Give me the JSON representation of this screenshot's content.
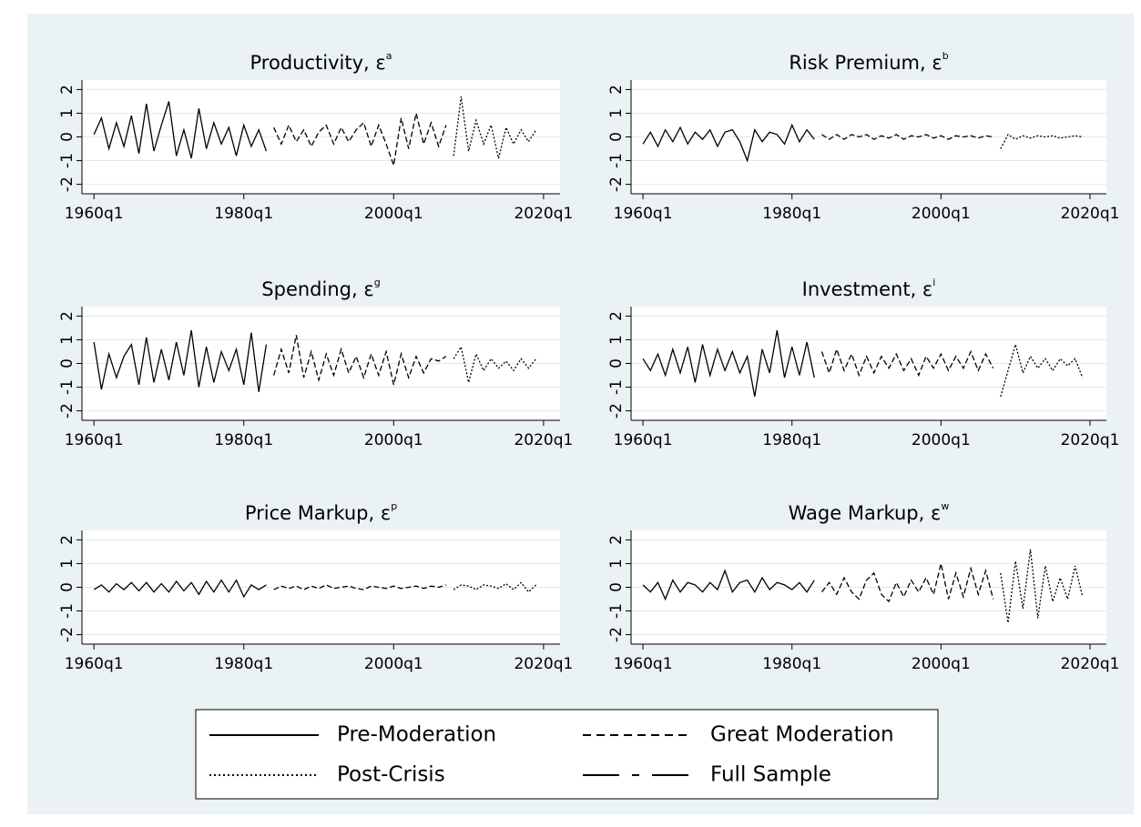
{
  "chart_data": [
    {
      "type": "line",
      "title": "Productivity, ε",
      "title_superscript": "a",
      "xlim": [
        1958.4,
        2022.2
      ],
      "ylim": [
        -2.4,
        2.4
      ],
      "xticks": [
        {
          "value": 1960,
          "label": "1960q1"
        },
        {
          "value": 1980,
          "label": "1980q1"
        },
        {
          "value": 2000,
          "label": "2000q1"
        },
        {
          "value": 2020,
          "label": "2020q1"
        }
      ],
      "yticks": [
        -2,
        -1,
        0,
        1,
        2
      ],
      "grid": true,
      "series": [
        {
          "color": "#000000",
          "dash": "none",
          "x": [
            1960,
            1961,
            1962,
            1963,
            1964,
            1965,
            1966,
            1967,
            1968,
            1969,
            1970,
            1971,
            1972,
            1973,
            1974,
            1975,
            1976,
            1977,
            1978,
            1979,
            1980,
            1981,
            1982,
            1983
          ],
          "values": [
            0.1,
            0.8,
            -0.5,
            0.6,
            -0.4,
            0.9,
            -0.7,
            1.4,
            -0.6,
            0.5,
            1.5,
            -0.8,
            0.3,
            -0.9,
            1.2,
            -0.5,
            0.6,
            -0.3,
            0.4,
            -0.8,
            0.5,
            -0.4,
            0.3,
            -0.6
          ]
        },
        {
          "color": "#000000",
          "dash": "6,3",
          "x": [
            1984,
            1985,
            1986,
            1987,
            1988,
            1989,
            1990,
            1991,
            1992,
            1993,
            1994,
            1995,
            1996,
            1997,
            1998,
            1999,
            2000,
            2001,
            2002,
            2003,
            2004,
            2005,
            2006,
            2007
          ],
          "values": [
            0.4,
            -0.3,
            0.5,
            -0.2,
            0.3,
            -0.4,
            0.2,
            0.5,
            -0.3,
            0.4,
            -0.2,
            0.3,
            0.6,
            -0.4,
            0.5,
            -0.3,
            -1.2,
            0.8,
            -0.5,
            1.0,
            -0.3,
            0.6,
            -0.4,
            0.5
          ]
        },
        {
          "color": "#000000",
          "dash": "2,2",
          "x": [
            2008,
            2009,
            2010,
            2011,
            2012,
            2013,
            2014,
            2015,
            2016,
            2017,
            2018,
            2019
          ],
          "values": [
            -0.8,
            1.7,
            -0.6,
            0.7,
            -0.3,
            0.5,
            -0.9,
            0.4,
            -0.3,
            0.3,
            -0.2,
            0.3
          ]
        }
      ]
    },
    {
      "type": "line",
      "title": "Risk Premium, ε",
      "title_superscript": "b",
      "xlim": [
        1958.4,
        2022.2
      ],
      "ylim": [
        -2.4,
        2.4
      ],
      "xticks": [
        {
          "value": 1960,
          "label": "1960q1"
        },
        {
          "value": 1980,
          "label": "1980q1"
        },
        {
          "value": 2000,
          "label": "2000q1"
        },
        {
          "value": 2020,
          "label": "2020q1"
        }
      ],
      "yticks": [
        -2,
        -1,
        0,
        1,
        2
      ],
      "grid": true,
      "series": [
        {
          "color": "#000000",
          "dash": "none",
          "x": [
            1960,
            1961,
            1962,
            1963,
            1964,
            1965,
            1966,
            1967,
            1968,
            1969,
            1970,
            1971,
            1972,
            1973,
            1974,
            1975,
            1976,
            1977,
            1978,
            1979,
            1980,
            1981,
            1982,
            1983
          ],
          "values": [
            -0.3,
            0.2,
            -0.4,
            0.3,
            -0.2,
            0.4,
            -0.3,
            0.2,
            -0.1,
            0.3,
            -0.4,
            0.2,
            0.3,
            -0.2,
            -1.0,
            0.3,
            -0.2,
            0.2,
            0.1,
            -0.3,
            0.5,
            -0.2,
            0.3,
            -0.1
          ]
        },
        {
          "color": "#000000",
          "dash": "6,3",
          "x": [
            1984,
            1985,
            1986,
            1987,
            1988,
            1989,
            1990,
            1991,
            1992,
            1993,
            1994,
            1995,
            1996,
            1997,
            1998,
            1999,
            2000,
            2001,
            2002,
            2003,
            2004,
            2005,
            2006,
            2007
          ],
          "values": [
            0.1,
            -0.1,
            0.1,
            -0.1,
            0.1,
            0,
            0.1,
            -0.1,
            0.05,
            -0.05,
            0.1,
            -0.1,
            0.05,
            0,
            0.1,
            -0.05,
            0.05,
            -0.1,
            0.05,
            0,
            0.05,
            -0.05,
            0.05,
            0
          ]
        },
        {
          "color": "#000000",
          "dash": "2,2",
          "x": [
            2008,
            2009,
            2010,
            2011,
            2012,
            2013,
            2014,
            2015,
            2016,
            2017,
            2018,
            2019
          ],
          "values": [
            -0.5,
            0.1,
            -0.1,
            0.05,
            -0.05,
            0.05,
            0,
            0.05,
            -0.05,
            0,
            0.05,
            0
          ]
        }
      ]
    },
    {
      "type": "line",
      "title": "Spending, ε",
      "title_superscript": "g",
      "xlim": [
        1958.4,
        2022.2
      ],
      "ylim": [
        -2.4,
        2.4
      ],
      "xticks": [
        {
          "value": 1960,
          "label": "1960q1"
        },
        {
          "value": 1980,
          "label": "1980q1"
        },
        {
          "value": 2000,
          "label": "2000q1"
        },
        {
          "value": 2020,
          "label": "2020q1"
        }
      ],
      "yticks": [
        -2,
        -1,
        0,
        1,
        2
      ],
      "grid": true,
      "series": [
        {
          "color": "#000000",
          "dash": "none",
          "x": [
            1960,
            1961,
            1962,
            1963,
            1964,
            1965,
            1966,
            1967,
            1968,
            1969,
            1970,
            1971,
            1972,
            1973,
            1974,
            1975,
            1976,
            1977,
            1978,
            1979,
            1980,
            1981,
            1982,
            1983
          ],
          "values": [
            0.9,
            -1.1,
            0.4,
            -0.6,
            0.3,
            0.8,
            -0.9,
            1.1,
            -0.8,
            0.6,
            -0.7,
            0.9,
            -0.5,
            1.4,
            -1.0,
            0.7,
            -0.8,
            0.5,
            -0.3,
            0.6,
            -0.9,
            1.3,
            -1.2,
            0.8
          ]
        },
        {
          "color": "#000000",
          "dash": "6,3",
          "x": [
            1984,
            1985,
            1986,
            1987,
            1988,
            1989,
            1990,
            1991,
            1992,
            1993,
            1994,
            1995,
            1996,
            1997,
            1998,
            1999,
            2000,
            2001,
            2002,
            2003,
            2004,
            2005,
            2006,
            2007
          ],
          "values": [
            -0.5,
            0.6,
            -0.4,
            1.2,
            -0.6,
            0.5,
            -0.7,
            0.4,
            -0.5,
            0.6,
            -0.4,
            0.3,
            -0.6,
            0.4,
            -0.5,
            0.5,
            -0.9,
            0.4,
            -0.6,
            0.3,
            -0.4,
            0.2,
            0.1,
            0.3
          ]
        },
        {
          "color": "#000000",
          "dash": "2,2",
          "x": [
            2008,
            2009,
            2010,
            2011,
            2012,
            2013,
            2014,
            2015,
            2016,
            2017,
            2018,
            2019
          ],
          "values": [
            0.2,
            0.7,
            -0.8,
            0.4,
            -0.3,
            0.2,
            -0.2,
            0.1,
            -0.3,
            0.2,
            -0.2,
            0.2
          ]
        }
      ]
    },
    {
      "type": "line",
      "title": "Investment, ε",
      "title_superscript": "i",
      "xlim": [
        1958.4,
        2022.2
      ],
      "ylim": [
        -2.4,
        2.4
      ],
      "xticks": [
        {
          "value": 1960,
          "label": "1960q1"
        },
        {
          "value": 1980,
          "label": "1980q1"
        },
        {
          "value": 2000,
          "label": "2000q1"
        },
        {
          "value": 2020,
          "label": "2020q1"
        }
      ],
      "yticks": [
        -2,
        -1,
        0,
        1,
        2
      ],
      "grid": true,
      "series": [
        {
          "color": "#000000",
          "dash": "none",
          "x": [
            1960,
            1961,
            1962,
            1963,
            1964,
            1965,
            1966,
            1967,
            1968,
            1969,
            1970,
            1971,
            1972,
            1973,
            1974,
            1975,
            1976,
            1977,
            1978,
            1979,
            1980,
            1981,
            1982,
            1983
          ],
          "values": [
            0.2,
            -0.3,
            0.4,
            -0.5,
            0.6,
            -0.4,
            0.7,
            -0.8,
            0.8,
            -0.5,
            0.6,
            -0.3,
            0.5,
            -0.4,
            0.3,
            -1.4,
            0.6,
            -0.4,
            1.4,
            -0.6,
            0.7,
            -0.5,
            0.9,
            -0.6
          ]
        },
        {
          "color": "#000000",
          "dash": "6,3",
          "x": [
            1984,
            1985,
            1986,
            1987,
            1988,
            1989,
            1990,
            1991,
            1992,
            1993,
            1994,
            1995,
            1996,
            1997,
            1998,
            1999,
            2000,
            2001,
            2002,
            2003,
            2004,
            2005,
            2006,
            2007
          ],
          "values": [
            0.5,
            -0.4,
            0.6,
            -0.3,
            0.4,
            -0.5,
            0.3,
            -0.4,
            0.3,
            -0.2,
            0.4,
            -0.3,
            0.2,
            -0.5,
            0.3,
            -0.2,
            0.4,
            -0.3,
            0.3,
            -0.2,
            0.5,
            -0.3,
            0.4,
            -0.2
          ]
        },
        {
          "color": "#000000",
          "dash": "2,2",
          "x": [
            2008,
            2009,
            2010,
            2011,
            2012,
            2013,
            2014,
            2015,
            2016,
            2017,
            2018,
            2019
          ],
          "values": [
            -1.4,
            -0.3,
            0.8,
            -0.4,
            0.3,
            -0.2,
            0.2,
            -0.3,
            0.2,
            -0.1,
            0.2,
            -0.6
          ]
        }
      ]
    },
    {
      "type": "line",
      "title": "Price Markup, ε",
      "title_superscript": "p",
      "xlim": [
        1958.4,
        2022.2
      ],
      "ylim": [
        -2.4,
        2.4
      ],
      "xticks": [
        {
          "value": 1960,
          "label": "1960q1"
        },
        {
          "value": 1980,
          "label": "1980q1"
        },
        {
          "value": 2000,
          "label": "2000q1"
        },
        {
          "value": 2020,
          "label": "2020q1"
        }
      ],
      "yticks": [
        -2,
        -1,
        0,
        1,
        2
      ],
      "grid": true,
      "series": [
        {
          "color": "#000000",
          "dash": "none",
          "x": [
            1960,
            1961,
            1962,
            1963,
            1964,
            1965,
            1966,
            1967,
            1968,
            1969,
            1970,
            1971,
            1972,
            1973,
            1974,
            1975,
            1976,
            1977,
            1978,
            1979,
            1980,
            1981,
            1982,
            1983
          ],
          "values": [
            -0.1,
            0.1,
            -0.2,
            0.15,
            -0.1,
            0.2,
            -0.15,
            0.2,
            -0.2,
            0.15,
            -0.2,
            0.25,
            -0.15,
            0.2,
            -0.3,
            0.25,
            -0.2,
            0.3,
            -0.2,
            0.3,
            -0.4,
            0.1,
            -0.1,
            0.1
          ]
        },
        {
          "color": "#000000",
          "dash": "6,3",
          "x": [
            1984,
            1985,
            1986,
            1987,
            1988,
            1989,
            1990,
            1991,
            1992,
            1993,
            1994,
            1995,
            1996,
            1997,
            1998,
            1999,
            2000,
            2001,
            2002,
            2003,
            2004,
            2005,
            2006,
            2007
          ],
          "values": [
            -0.1,
            0.05,
            -0.05,
            0.05,
            -0.1,
            0.05,
            -0.05,
            0.1,
            -0.05,
            0,
            0.05,
            -0.05,
            -0.1,
            0.05,
            0,
            -0.05,
            0.05,
            -0.05,
            0,
            0.05,
            -0.05,
            0.05,
            0,
            0.1
          ]
        },
        {
          "color": "#000000",
          "dash": "2,2",
          "x": [
            2008,
            2009,
            2010,
            2011,
            2012,
            2013,
            2014,
            2015,
            2016,
            2017,
            2018,
            2019
          ],
          "values": [
            -0.1,
            0.1,
            0.05,
            -0.1,
            0.1,
            0.05,
            -0.05,
            0.15,
            -0.1,
            0.2,
            -0.2,
            0.1
          ]
        }
      ]
    },
    {
      "type": "line",
      "title": "Wage Markup, ε",
      "title_superscript": "w",
      "xlim": [
        1958.4,
        2022.2
      ],
      "ylim": [
        -2.4,
        2.4
      ],
      "xticks": [
        {
          "value": 1960,
          "label": "1960q1"
        },
        {
          "value": 1980,
          "label": "1980q1"
        },
        {
          "value": 2000,
          "label": "2000q1"
        },
        {
          "value": 2020,
          "label": "2020q1"
        }
      ],
      "yticks": [
        -2,
        -1,
        0,
        1,
        2
      ],
      "grid": true,
      "series": [
        {
          "color": "#000000",
          "dash": "none",
          "x": [
            1960,
            1961,
            1962,
            1963,
            1964,
            1965,
            1966,
            1967,
            1968,
            1969,
            1970,
            1971,
            1972,
            1973,
            1974,
            1975,
            1976,
            1977,
            1978,
            1979,
            1980,
            1981,
            1982,
            1983
          ],
          "values": [
            0.1,
            -0.2,
            0.2,
            -0.5,
            0.3,
            -0.2,
            0.2,
            0.1,
            -0.2,
            0.2,
            -0.1,
            0.7,
            -0.2,
            0.2,
            0.3,
            -0.2,
            0.4,
            -0.1,
            0.2,
            0.1,
            -0.1,
            0.2,
            -0.2,
            0.3
          ]
        },
        {
          "color": "#000000",
          "dash": "6,3",
          "x": [
            1984,
            1985,
            1986,
            1987,
            1988,
            1989,
            1990,
            1991,
            1992,
            1993,
            1994,
            1995,
            1996,
            1997,
            1998,
            1999,
            2000,
            2001,
            2002,
            2003,
            2004,
            2005,
            2006,
            2007
          ],
          "values": [
            -0.2,
            0.2,
            -0.3,
            0.4,
            -0.2,
            -0.5,
            0.3,
            0.6,
            -0.3,
            -0.6,
            0.2,
            -0.4,
            0.3,
            -0.2,
            0.4,
            -0.3,
            1.0,
            -0.5,
            0.6,
            -0.4,
            0.8,
            -0.3,
            0.7,
            -0.5
          ]
        },
        {
          "color": "#000000",
          "dash": "2,2",
          "x": [
            2008,
            2009,
            2010,
            2011,
            2012,
            2013,
            2014,
            2015,
            2016,
            2017,
            2018,
            2019
          ],
          "values": [
            0.6,
            -1.5,
            1.1,
            -0.9,
            1.6,
            -1.3,
            0.9,
            -0.6,
            0.4,
            -0.5,
            0.9,
            -0.4
          ]
        }
      ]
    }
  ],
  "legend": [
    {
      "name": "Pre-Moderation",
      "dash": "none"
    },
    {
      "name": "Great Moderation",
      "dash": "9,6"
    },
    {
      "name": "Post-Crisis",
      "dash": "2,3"
    },
    {
      "name": "Full Sample",
      "dash": "40,14,8,14"
    }
  ]
}
